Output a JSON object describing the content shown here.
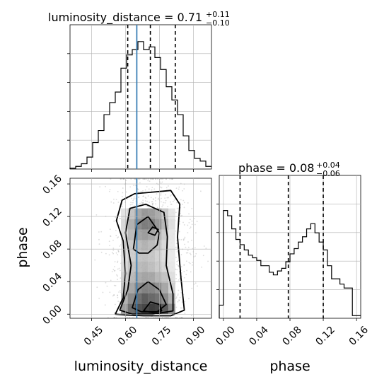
{
  "figure": {
    "diag1_title": {
      "main": "luminosity_distance = 0.71",
      "sup": "+0.11",
      "sub": "−0.10"
    },
    "diag2_title": {
      "main": "phase = 0.08",
      "sup": "+0.04",
      "sub": "−0.06"
    },
    "xlabel_left": "luminosity_distance",
    "xlabel_right": "phase",
    "ylabel_left": "phase"
  },
  "colors": {
    "truth_line": "#3a7fb5",
    "histogram": "#000000",
    "grid": "#b0b0b0"
  },
  "chart_data": [
    {
      "type": "histogram",
      "panel": "luminosity_distance marginal",
      "xlim": [
        0.355,
        0.98
      ],
      "bin_edges": [
        0.355,
        0.38,
        0.405,
        0.43,
        0.455,
        0.48,
        0.505,
        0.53,
        0.555,
        0.58,
        0.605,
        0.63,
        0.655,
        0.68,
        0.705,
        0.73,
        0.755,
        0.78,
        0.805,
        0.83,
        0.855,
        0.88,
        0.905,
        0.93,
        0.955,
        0.98
      ],
      "density": [
        0.006,
        0.02,
        0.04,
        0.09,
        0.2,
        0.29,
        0.41,
        0.5,
        0.58,
        0.76,
        0.86,
        0.9,
        0.96,
        0.9,
        0.92,
        0.84,
        0.75,
        0.62,
        0.52,
        0.41,
        0.25,
        0.14,
        0.08,
        0.06,
        0.02
      ],
      "quantile_lines": [
        0.61,
        0.71,
        0.82
      ],
      "truth": 0.65,
      "xticks": [
        0.45,
        0.6,
        0.75,
        0.9
      ]
    },
    {
      "type": "histogram",
      "panel": "phase marginal",
      "xlim": [
        -0.005,
        0.165
      ],
      "bin_edges": [
        -0.005,
        0.0,
        0.005,
        0.01,
        0.015,
        0.02,
        0.025,
        0.03,
        0.035,
        0.04,
        0.045,
        0.05,
        0.055,
        0.06,
        0.065,
        0.07,
        0.075,
        0.08,
        0.085,
        0.09,
        0.095,
        0.1,
        0.105,
        0.11,
        0.115,
        0.12,
        0.125,
        0.13,
        0.135,
        0.14,
        0.145,
        0.15,
        0.155,
        0.16,
        0.165
      ],
      "density": [
        0.1,
        0.82,
        0.78,
        0.68,
        0.6,
        0.56,
        0.52,
        0.48,
        0.46,
        0.44,
        0.4,
        0.4,
        0.35,
        0.33,
        0.36,
        0.38,
        0.43,
        0.49,
        0.53,
        0.58,
        0.62,
        0.68,
        0.72,
        0.65,
        0.58,
        0.52,
        0.4,
        0.3,
        0.3,
        0.26,
        0.23,
        0.23,
        0.02,
        0.02
      ],
      "quantile_lines": [
        0.02,
        0.078,
        0.12
      ],
      "xticks": [
        0.0,
        0.04,
        0.08,
        0.12,
        0.16
      ]
    },
    {
      "type": "scatter",
      "panel": "joint luminosity_distance vs phase",
      "xlim": [
        0.355,
        0.98
      ],
      "ylim": [
        -0.005,
        0.167
      ],
      "xticks": [
        0.45,
        0.6,
        0.75,
        0.9
      ],
      "yticks": [
        0.0,
        0.04,
        0.08,
        0.12,
        0.16
      ],
      "truth_x": 0.65,
      "grid_x": [
        0.58,
        0.61,
        0.64,
        0.67,
        0.7,
        0.73,
        0.76,
        0.79
      ],
      "grid_y": [
        0.0,
        0.013,
        0.026,
        0.039,
        0.052,
        0.065,
        0.078,
        0.091,
        0.104,
        0.117
      ],
      "density_grid": [
        [
          0.45,
          0.7,
          0.85,
          0.9,
          0.95,
          0.92,
          0.8,
          0.55
        ],
        [
          0.35,
          0.55,
          0.7,
          0.78,
          0.72,
          0.68,
          0.55,
          0.35
        ],
        [
          0.25,
          0.4,
          0.55,
          0.6,
          0.58,
          0.52,
          0.4,
          0.2
        ],
        [
          0.2,
          0.3,
          0.38,
          0.42,
          0.4,
          0.32,
          0.25,
          0.12
        ],
        [
          0.15,
          0.25,
          0.3,
          0.32,
          0.28,
          0.22,
          0.15,
          0.08
        ],
        [
          0.12,
          0.2,
          0.25,
          0.26,
          0.24,
          0.18,
          0.12,
          0.06
        ],
        [
          0.1,
          0.22,
          0.3,
          0.34,
          0.3,
          0.24,
          0.15,
          0.06
        ],
        [
          0.12,
          0.3,
          0.42,
          0.45,
          0.4,
          0.32,
          0.2,
          0.08
        ],
        [
          0.15,
          0.35,
          0.55,
          0.62,
          0.6,
          0.48,
          0.32,
          0.12
        ],
        [
          0.1,
          0.25,
          0.4,
          0.48,
          0.45,
          0.38,
          0.22,
          0.08
        ]
      ],
      "contours": [
        [
          [
            0.555,
            0.0
          ],
          [
            0.59,
            0.02
          ],
          [
            0.6,
            0.05
          ],
          [
            0.59,
            0.09
          ],
          [
            0.56,
            0.115
          ],
          [
            0.585,
            0.14
          ],
          [
            0.64,
            0.148
          ],
          [
            0.72,
            0.15
          ],
          [
            0.8,
            0.152
          ],
          [
            0.84,
            0.135
          ],
          [
            0.83,
            0.095
          ],
          [
            0.845,
            0.045
          ],
          [
            0.86,
            0.005
          ],
          [
            0.8,
            -0.002
          ],
          [
            0.68,
            -0.002
          ],
          [
            0.6,
            -0.001
          ]
        ],
        [
          [
            0.575,
            0.005
          ],
          [
            0.61,
            0.03
          ],
          [
            0.625,
            0.06
          ],
          [
            0.6,
            0.1
          ],
          [
            0.62,
            0.13
          ],
          [
            0.69,
            0.135
          ],
          [
            0.77,
            0.125
          ],
          [
            0.785,
            0.095
          ],
          [
            0.78,
            0.06
          ],
          [
            0.81,
            0.025
          ],
          [
            0.81,
            0.004
          ],
          [
            0.72,
            0.0
          ],
          [
            0.63,
            0.0
          ]
        ],
        [
          [
            0.63,
            0.008
          ],
          [
            0.655,
            0.03
          ],
          [
            0.7,
            0.04
          ],
          [
            0.75,
            0.03
          ],
          [
            0.78,
            0.012
          ],
          [
            0.74,
            0.003
          ],
          [
            0.67,
            0.003
          ]
        ],
        [
          [
            0.635,
            0.08
          ],
          [
            0.65,
            0.11
          ],
          [
            0.7,
            0.12
          ],
          [
            0.75,
            0.1
          ],
          [
            0.74,
            0.085
          ],
          [
            0.7,
            0.075
          ],
          [
            0.66,
            0.075
          ]
        ],
        [
          [
            0.68,
            0.004
          ],
          [
            0.71,
            0.015
          ],
          [
            0.75,
            0.012
          ],
          [
            0.76,
            0.004
          ],
          [
            0.72,
            0.002
          ]
        ],
        [
          [
            0.7,
            0.1
          ],
          [
            0.72,
            0.107
          ],
          [
            0.745,
            0.104
          ],
          [
            0.73,
            0.097
          ]
        ]
      ]
    }
  ]
}
